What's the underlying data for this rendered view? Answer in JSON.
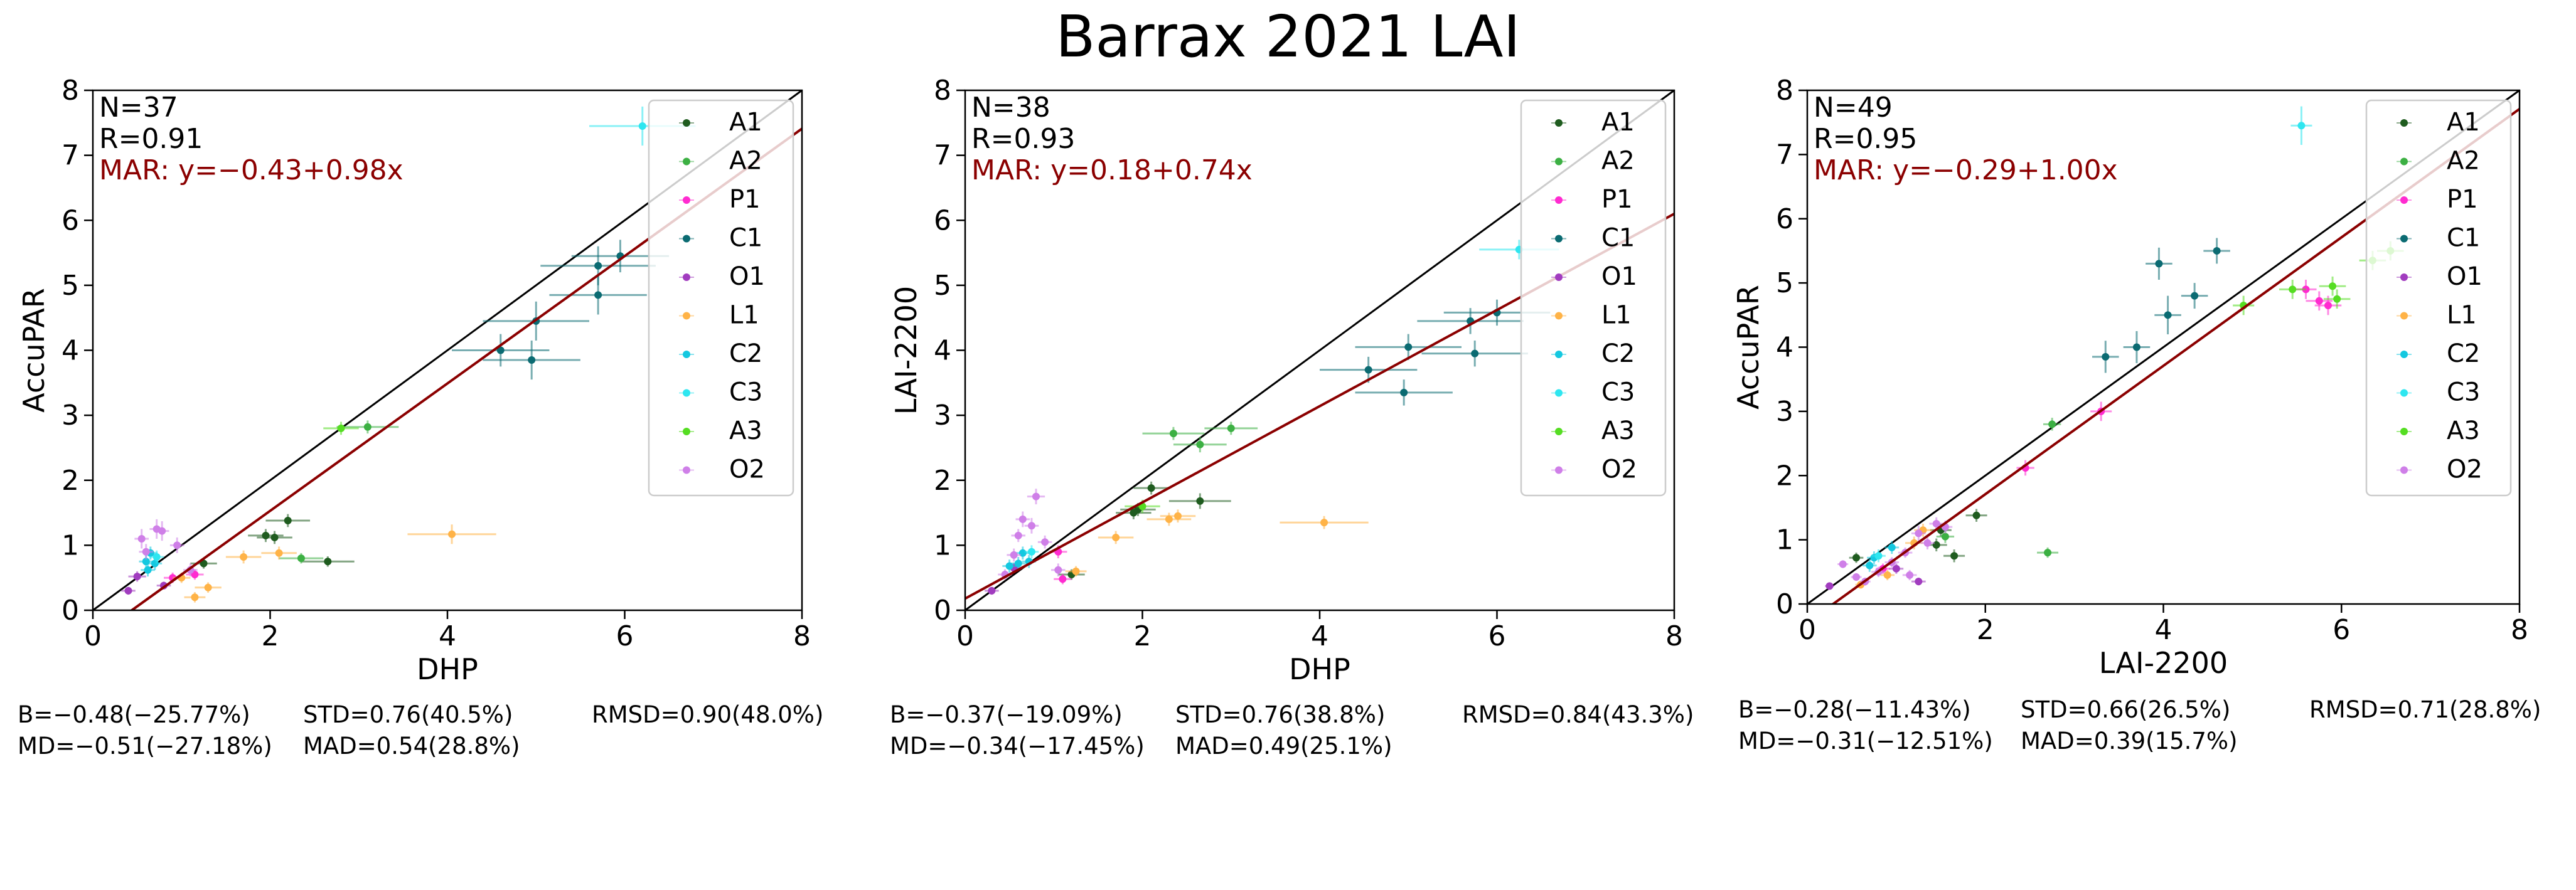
{
  "title": "Barrax 2021 LAI",
  "colors": {
    "A1": "#1f5c1f",
    "A2": "#3cb043",
    "P1": "#ff2bd0",
    "C1": "#0b6b72",
    "O1": "#a13cbf",
    "L1": "#ffb347",
    "C2": "#14c8e0",
    "C3": "#2ee6f0",
    "A3": "#55dd22",
    "O2": "#cf7fe8",
    "fit": "#8b0000",
    "one_to_one": "#000000"
  },
  "chart_data": [
    {
      "type": "scatter",
      "xlabel": "DHP",
      "ylabel": "AccuPAR",
      "xlim": [
        0,
        8
      ],
      "ylim": [
        0,
        8
      ],
      "xticks": [
        "0",
        "2",
        "4",
        "6",
        "8"
      ],
      "yticks": [
        "0",
        "1",
        "2",
        "3",
        "4",
        "5",
        "6",
        "7",
        "8"
      ],
      "annotations": {
        "n": "N=37",
        "r": "R=0.91",
        "mar": "MAR: y=−0.43+0.98x"
      },
      "fit": {
        "intercept": -0.43,
        "slope": 0.98
      },
      "legend": [
        "A1",
        "A2",
        "P1",
        "C1",
        "O1",
        "L1",
        "C2",
        "C3",
        "A3",
        "O2"
      ],
      "stats": {
        "b": "B=−0.48(−25.77%)",
        "std": "STD=0.76(40.5%)",
        "rmsd": "RMSD=0.90(48.0%)",
        "md": "MD=−0.51(−27.18%)",
        "mad": "MAD=0.54(28.8%)"
      },
      "points": [
        {
          "s": "A1",
          "x": 2.2,
          "y": 1.38,
          "ex": 0.25,
          "ey": 0.1
        },
        {
          "s": "A1",
          "x": 1.95,
          "y": 1.15,
          "ex": 0.2,
          "ey": 0.1
        },
        {
          "s": "A1",
          "x": 2.05,
          "y": 1.12,
          "ex": 0.2,
          "ey": 0.1
        },
        {
          "s": "A1",
          "x": 1.25,
          "y": 0.72,
          "ex": 0.15,
          "ey": 0.08
        },
        {
          "s": "A1",
          "x": 2.65,
          "y": 0.75,
          "ex": 0.3,
          "ey": 0.08
        },
        {
          "s": "A2",
          "x": 2.35,
          "y": 0.8,
          "ex": 0.25,
          "ey": 0.08
        },
        {
          "s": "A2",
          "x": 3.1,
          "y": 2.82,
          "ex": 0.35,
          "ey": 0.1
        },
        {
          "s": "P1",
          "x": 1.15,
          "y": 0.55,
          "ex": 0.1,
          "ey": 0.08
        },
        {
          "s": "P1",
          "x": 0.9,
          "y": 0.5,
          "ex": 0.1,
          "ey": 0.08
        },
        {
          "s": "C1",
          "x": 4.6,
          "y": 4.0,
          "ex": 0.55,
          "ey": 0.25
        },
        {
          "s": "C1",
          "x": 4.95,
          "y": 3.85,
          "ex": 0.55,
          "ey": 0.3
        },
        {
          "s": "C1",
          "x": 5.7,
          "y": 5.3,
          "ex": 0.65,
          "ey": 0.3
        },
        {
          "s": "C1",
          "x": 5.95,
          "y": 5.45,
          "ex": 0.55,
          "ey": 0.25
        },
        {
          "s": "C1",
          "x": 5.7,
          "y": 4.85,
          "ex": 0.55,
          "ey": 0.3
        },
        {
          "s": "C1",
          "x": 5.0,
          "y": 4.45,
          "ex": 0.6,
          "ey": 0.3
        },
        {
          "s": "O1",
          "x": 0.5,
          "y": 0.52,
          "ex": 0.1,
          "ey": 0.08
        },
        {
          "s": "O1",
          "x": 0.4,
          "y": 0.3,
          "ex": 0.08,
          "ey": 0.06
        },
        {
          "s": "O1",
          "x": 0.8,
          "y": 0.38,
          "ex": 0.08,
          "ey": 0.06
        },
        {
          "s": "L1",
          "x": 4.05,
          "y": 1.17,
          "ex": 0.5,
          "ey": 0.15
        },
        {
          "s": "L1",
          "x": 1.3,
          "y": 0.35,
          "ex": 0.15,
          "ey": 0.08
        },
        {
          "s": "L1",
          "x": 1.15,
          "y": 0.2,
          "ex": 0.12,
          "ey": 0.08
        },
        {
          "s": "L1",
          "x": 1.7,
          "y": 0.82,
          "ex": 0.2,
          "ey": 0.1
        },
        {
          "s": "L1",
          "x": 2.1,
          "y": 0.88,
          "ex": 0.2,
          "ey": 0.1
        },
        {
          "s": "L1",
          "x": 1.0,
          "y": 0.5,
          "ex": 0.1,
          "ey": 0.08
        },
        {
          "s": "C2",
          "x": 0.65,
          "y": 0.88,
          "ex": 0.08,
          "ey": 0.1
        },
        {
          "s": "C2",
          "x": 0.6,
          "y": 0.75,
          "ex": 0.08,
          "ey": 0.1
        },
        {
          "s": "C2",
          "x": 0.7,
          "y": 0.72,
          "ex": 0.08,
          "ey": 0.1
        },
        {
          "s": "C2",
          "x": 0.62,
          "y": 0.62,
          "ex": 0.08,
          "ey": 0.1
        },
        {
          "s": "C3",
          "x": 6.2,
          "y": 7.45,
          "ex": 0.6,
          "ey": 0.3
        },
        {
          "s": "C3",
          "x": 0.72,
          "y": 0.82,
          "ex": 0.08,
          "ey": 0.1
        },
        {
          "s": "A3",
          "x": 2.8,
          "y": 2.8,
          "ex": 0.2,
          "ey": 0.1
        },
        {
          "s": "O2",
          "x": 0.55,
          "y": 1.1,
          "ex": 0.08,
          "ey": 0.15
        },
        {
          "s": "O2",
          "x": 0.72,
          "y": 1.25,
          "ex": 0.08,
          "ey": 0.15
        },
        {
          "s": "O2",
          "x": 0.78,
          "y": 1.22,
          "ex": 0.08,
          "ey": 0.15
        },
        {
          "s": "O2",
          "x": 0.95,
          "y": 1.0,
          "ex": 0.08,
          "ey": 0.12
        },
        {
          "s": "O2",
          "x": 0.6,
          "y": 0.9,
          "ex": 0.08,
          "ey": 0.12
        },
        {
          "s": "O2",
          "x": 1.1,
          "y": 0.62,
          "ex": 0.08,
          "ey": 0.1
        }
      ]
    },
    {
      "type": "scatter",
      "xlabel": "DHP",
      "ylabel": "LAI-2200",
      "xlim": [
        0,
        8
      ],
      "ylim": [
        0,
        8
      ],
      "xticks": [
        "0",
        "2",
        "4",
        "6",
        "8"
      ],
      "yticks": [
        "0",
        "1",
        "2",
        "3",
        "4",
        "5",
        "6",
        "7",
        "8"
      ],
      "annotations": {
        "n": "N=38",
        "r": "R=0.93",
        "mar": "MAR: y=0.18+0.74x"
      },
      "fit": {
        "intercept": 0.18,
        "slope": 0.74
      },
      "legend": [
        "A1",
        "A2",
        "P1",
        "C1",
        "O1",
        "L1",
        "C2",
        "C3",
        "A3",
        "O2"
      ],
      "stats": {
        "b": "B=−0.37(−19.09%)",
        "std": "STD=0.76(38.8%)",
        "rmsd": "RMSD=0.84(43.3%)",
        "md": "MD=−0.34(−17.45%)",
        "mad": "MAD=0.49(25.1%)"
      },
      "points": [
        {
          "s": "A1",
          "x": 2.65,
          "y": 1.68,
          "ex": 0.35,
          "ey": 0.12
        },
        {
          "s": "A1",
          "x": 2.1,
          "y": 1.88,
          "ex": 0.2,
          "ey": 0.1
        },
        {
          "s": "A1",
          "x": 1.95,
          "y": 1.55,
          "ex": 0.2,
          "ey": 0.1
        },
        {
          "s": "A1",
          "x": 1.9,
          "y": 1.5,
          "ex": 0.2,
          "ey": 0.1
        },
        {
          "s": "A1",
          "x": 1.2,
          "y": 0.55,
          "ex": 0.15,
          "ey": 0.08
        },
        {
          "s": "A2",
          "x": 2.65,
          "y": 2.55,
          "ex": 0.3,
          "ey": 0.12
        },
        {
          "s": "A2",
          "x": 2.35,
          "y": 2.72,
          "ex": 0.35,
          "ey": 0.1
        },
        {
          "s": "A2",
          "x": 3.0,
          "y": 2.8,
          "ex": 0.3,
          "ey": 0.1
        },
        {
          "s": "P1",
          "x": 1.05,
          "y": 0.9,
          "ex": 0.1,
          "ey": 0.1
        },
        {
          "s": "P1",
          "x": 1.1,
          "y": 0.48,
          "ex": 0.1,
          "ey": 0.08
        },
        {
          "s": "C1",
          "x": 4.55,
          "y": 3.7,
          "ex": 0.55,
          "ey": 0.2
        },
        {
          "s": "C1",
          "x": 4.95,
          "y": 3.35,
          "ex": 0.55,
          "ey": 0.2
        },
        {
          "s": "C1",
          "x": 5.0,
          "y": 4.05,
          "ex": 0.6,
          "ey": 0.2
        },
        {
          "s": "C1",
          "x": 5.7,
          "y": 4.45,
          "ex": 0.6,
          "ey": 0.2
        },
        {
          "s": "C1",
          "x": 5.75,
          "y": 3.95,
          "ex": 0.6,
          "ey": 0.2
        },
        {
          "s": "C1",
          "x": 6.0,
          "y": 4.58,
          "ex": 0.6,
          "ey": 0.2
        },
        {
          "s": "O1",
          "x": 0.3,
          "y": 0.3,
          "ex": 0.08,
          "ey": 0.06
        },
        {
          "s": "O1",
          "x": 0.55,
          "y": 0.65,
          "ex": 0.08,
          "ey": 0.08
        },
        {
          "s": "L1",
          "x": 4.05,
          "y": 1.35,
          "ex": 0.5,
          "ey": 0.1
        },
        {
          "s": "L1",
          "x": 1.7,
          "y": 1.12,
          "ex": 0.2,
          "ey": 0.1
        },
        {
          "s": "L1",
          "x": 2.3,
          "y": 1.4,
          "ex": 0.25,
          "ey": 0.1
        },
        {
          "s": "L1",
          "x": 2.4,
          "y": 1.45,
          "ex": 0.2,
          "ey": 0.1
        },
        {
          "s": "L1",
          "x": 1.25,
          "y": 0.6,
          "ex": 0.12,
          "ey": 0.08
        },
        {
          "s": "C2",
          "x": 0.65,
          "y": 0.88,
          "ex": 0.08,
          "ey": 0.1
        },
        {
          "s": "C2",
          "x": 0.6,
          "y": 0.72,
          "ex": 0.08,
          "ey": 0.1
        },
        {
          "s": "C2",
          "x": 0.72,
          "y": 0.75,
          "ex": 0.08,
          "ey": 0.1
        },
        {
          "s": "C2",
          "x": 0.5,
          "y": 0.68,
          "ex": 0.08,
          "ey": 0.1
        },
        {
          "s": "C3",
          "x": 6.25,
          "y": 5.55,
          "ex": 0.45,
          "ey": 0.15
        },
        {
          "s": "C3",
          "x": 0.75,
          "y": 0.9,
          "ex": 0.08,
          "ey": 0.1
        },
        {
          "s": "A3",
          "x": 2.0,
          "y": 1.6,
          "ex": 0.2,
          "ey": 0.1
        },
        {
          "s": "O2",
          "x": 0.8,
          "y": 1.75,
          "ex": 0.1,
          "ey": 0.12
        },
        {
          "s": "O2",
          "x": 0.65,
          "y": 1.4,
          "ex": 0.08,
          "ey": 0.12
        },
        {
          "s": "O2",
          "x": 0.75,
          "y": 1.3,
          "ex": 0.08,
          "ey": 0.12
        },
        {
          "s": "O2",
          "x": 0.6,
          "y": 1.15,
          "ex": 0.08,
          "ey": 0.1
        },
        {
          "s": "O2",
          "x": 0.9,
          "y": 1.05,
          "ex": 0.08,
          "ey": 0.1
        },
        {
          "s": "O2",
          "x": 0.55,
          "y": 0.85,
          "ex": 0.08,
          "ey": 0.1
        },
        {
          "s": "O2",
          "x": 1.05,
          "y": 0.62,
          "ex": 0.08,
          "ey": 0.1
        },
        {
          "s": "O2",
          "x": 0.45,
          "y": 0.55,
          "ex": 0.08,
          "ey": 0.08
        }
      ]
    },
    {
      "type": "scatter",
      "xlabel": "LAI-2200",
      "ylabel": "AccuPAR",
      "xlim": [
        0,
        8
      ],
      "ylim": [
        0,
        8
      ],
      "xticks": [
        "0",
        "2",
        "4",
        "6",
        "8"
      ],
      "yticks": [
        "0",
        "1",
        "2",
        "3",
        "4",
        "5",
        "6",
        "7",
        "8"
      ],
      "annotations": {
        "n": "N=49",
        "r": "R=0.95",
        "mar": "MAR: y=−0.29+1.00x"
      },
      "fit": {
        "intercept": -0.29,
        "slope": 1.0
      },
      "legend": [
        "A1",
        "A2",
        "P1",
        "C1",
        "O1",
        "L1",
        "C2",
        "C3",
        "A3",
        "O2"
      ],
      "stats": {
        "b": "B=−0.28(−11.43%)",
        "std": "STD=0.66(26.5%)",
        "rmsd": "RMSD=0.71(28.8%)",
        "md": "MD=−0.31(−12.51%)",
        "mad": "MAD=0.39(15.7%)"
      },
      "points": [
        {
          "s": "A1",
          "x": 1.5,
          "y": 1.15,
          "ex": 0.12,
          "ey": 0.1
        },
        {
          "s": "A1",
          "x": 1.45,
          "y": 0.92,
          "ex": 0.12,
          "ey": 0.1
        },
        {
          "s": "A1",
          "x": 1.65,
          "y": 0.75,
          "ex": 0.12,
          "ey": 0.1
        },
        {
          "s": "A1",
          "x": 1.9,
          "y": 1.38,
          "ex": 0.12,
          "ey": 0.1
        },
        {
          "s": "A1",
          "x": 0.55,
          "y": 0.72,
          "ex": 0.08,
          "ey": 0.08
        },
        {
          "s": "A2",
          "x": 2.75,
          "y": 2.8,
          "ex": 0.1,
          "ey": 0.1
        },
        {
          "s": "A2",
          "x": 2.7,
          "y": 0.8,
          "ex": 0.12,
          "ey": 0.08
        },
        {
          "s": "A2",
          "x": 1.55,
          "y": 1.05,
          "ex": 0.1,
          "ey": 0.1
        },
        {
          "s": "P1",
          "x": 2.45,
          "y": 2.12,
          "ex": 0.1,
          "ey": 0.12
        },
        {
          "s": "P1",
          "x": 3.3,
          "y": 3.0,
          "ex": 0.12,
          "ey": 0.15
        },
        {
          "s": "P1",
          "x": 5.75,
          "y": 4.72,
          "ex": 0.15,
          "ey": 0.15
        },
        {
          "s": "P1",
          "x": 5.85,
          "y": 4.65,
          "ex": 0.15,
          "ey": 0.15
        },
        {
          "s": "P1",
          "x": 5.6,
          "y": 4.9,
          "ex": 0.12,
          "ey": 0.15
        },
        {
          "s": "P1",
          "x": 0.85,
          "y": 0.55,
          "ex": 0.08,
          "ey": 0.08
        },
        {
          "s": "C1",
          "x": 3.35,
          "y": 3.85,
          "ex": 0.15,
          "ey": 0.25
        },
        {
          "s": "C1",
          "x": 3.7,
          "y": 4.0,
          "ex": 0.15,
          "ey": 0.25
        },
        {
          "s": "C1",
          "x": 3.95,
          "y": 5.3,
          "ex": 0.15,
          "ey": 0.25
        },
        {
          "s": "C1",
          "x": 4.05,
          "y": 4.5,
          "ex": 0.15,
          "ey": 0.3
        },
        {
          "s": "C1",
          "x": 4.35,
          "y": 4.8,
          "ex": 0.15,
          "ey": 0.2
        },
        {
          "s": "C1",
          "x": 4.6,
          "y": 5.5,
          "ex": 0.15,
          "ey": 0.2
        },
        {
          "s": "O1",
          "x": 0.25,
          "y": 0.28,
          "ex": 0.05,
          "ey": 0.05
        },
        {
          "s": "O1",
          "x": 1.0,
          "y": 0.55,
          "ex": 0.08,
          "ey": 0.08
        },
        {
          "s": "O1",
          "x": 1.25,
          "y": 0.35,
          "ex": 0.08,
          "ey": 0.06
        },
        {
          "s": "L1",
          "x": 0.6,
          "y": 0.3,
          "ex": 0.06,
          "ey": 0.06
        },
        {
          "s": "L1",
          "x": 1.3,
          "y": 1.15,
          "ex": 0.1,
          "ey": 0.1
        },
        {
          "s": "L1",
          "x": 1.2,
          "y": 0.95,
          "ex": 0.1,
          "ey": 0.1
        },
        {
          "s": "L1",
          "x": 0.9,
          "y": 0.45,
          "ex": 0.08,
          "ey": 0.08
        },
        {
          "s": "C2",
          "x": 0.75,
          "y": 0.72,
          "ex": 0.08,
          "ey": 0.1
        },
        {
          "s": "C2",
          "x": 0.95,
          "y": 0.88,
          "ex": 0.08,
          "ey": 0.1
        },
        {
          "s": "C2",
          "x": 0.7,
          "y": 0.6,
          "ex": 0.08,
          "ey": 0.1
        },
        {
          "s": "C3",
          "x": 5.55,
          "y": 7.45,
          "ex": 0.12,
          "ey": 0.3
        },
        {
          "s": "C3",
          "x": 0.8,
          "y": 0.75,
          "ex": 0.08,
          "ey": 0.1
        },
        {
          "s": "A3",
          "x": 4.9,
          "y": 4.65,
          "ex": 0.12,
          "ey": 0.15
        },
        {
          "s": "A3",
          "x": 5.45,
          "y": 4.9,
          "ex": 0.15,
          "ey": 0.15
        },
        {
          "s": "A3",
          "x": 5.9,
          "y": 4.95,
          "ex": 0.15,
          "ey": 0.15
        },
        {
          "s": "A3",
          "x": 6.35,
          "y": 5.35,
          "ex": 0.15,
          "ey": 0.15
        },
        {
          "s": "A3",
          "x": 5.95,
          "y": 4.75,
          "ex": 0.15,
          "ey": 0.15
        },
        {
          "s": "A3",
          "x": 6.55,
          "y": 5.5,
          "ex": 0.15,
          "ey": 0.15
        },
        {
          "s": "O2",
          "x": 1.25,
          "y": 1.1,
          "ex": 0.08,
          "ey": 0.12
        },
        {
          "s": "O2",
          "x": 1.45,
          "y": 1.25,
          "ex": 0.08,
          "ey": 0.1
        },
        {
          "s": "O2",
          "x": 0.8,
          "y": 0.5,
          "ex": 0.08,
          "ey": 0.08
        },
        {
          "s": "O2",
          "x": 0.55,
          "y": 0.42,
          "ex": 0.06,
          "ey": 0.06
        },
        {
          "s": "O2",
          "x": 1.1,
          "y": 0.8,
          "ex": 0.08,
          "ey": 0.08
        },
        {
          "s": "O2",
          "x": 0.4,
          "y": 0.62,
          "ex": 0.06,
          "ey": 0.06
        },
        {
          "s": "O2",
          "x": 1.55,
          "y": 1.2,
          "ex": 0.08,
          "ey": 0.1
        },
        {
          "s": "O2",
          "x": 0.65,
          "y": 0.35,
          "ex": 0.06,
          "ey": 0.06
        },
        {
          "s": "O2",
          "x": 1.35,
          "y": 0.95,
          "ex": 0.08,
          "ey": 0.1
        },
        {
          "s": "O2",
          "x": 0.95,
          "y": 0.65,
          "ex": 0.08,
          "ey": 0.08
        },
        {
          "s": "O2",
          "x": 1.15,
          "y": 0.45,
          "ex": 0.08,
          "ey": 0.08
        }
      ]
    }
  ]
}
